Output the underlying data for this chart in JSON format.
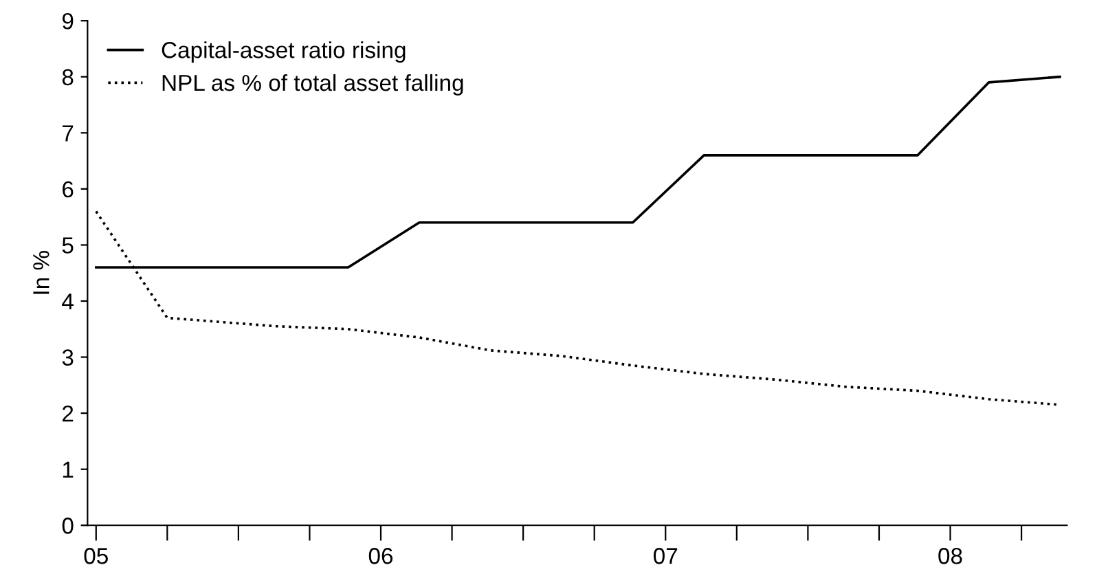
{
  "chart_data": {
    "type": "line",
    "ylabel": "In %",
    "xlim": [
      4.97,
      8.41
    ],
    "xticks": [
      {
        "value": 5,
        "label": "05"
      },
      {
        "value": 5.25,
        "label": null
      },
      {
        "value": 5.5,
        "label": null
      },
      {
        "value": 5.75,
        "label": null
      },
      {
        "value": 6,
        "label": "06"
      },
      {
        "value": 6.25,
        "label": null
      },
      {
        "value": 6.5,
        "label": null
      },
      {
        "value": 6.75,
        "label": null
      },
      {
        "value": 7,
        "label": "07"
      },
      {
        "value": 7.25,
        "label": null
      },
      {
        "value": 7.5,
        "label": null
      },
      {
        "value": 7.75,
        "label": null
      },
      {
        "value": 8,
        "label": "08"
      },
      {
        "value": 8.25,
        "label": null
      }
    ],
    "ylim": [
      0,
      9
    ],
    "yticks": [
      0,
      1,
      2,
      3,
      4,
      5,
      6,
      7,
      8,
      9
    ],
    "grid": false,
    "legend": "top left",
    "series": [
      {
        "name": "Capital-asset ratio rising",
        "color": "#000000",
        "line_style": "solid",
        "x": [
          5,
          5.885,
          6.135,
          6.885,
          7.135,
          7.885,
          8.135,
          8.385
        ],
        "values": [
          4.6,
          4.6,
          5.4,
          5.4,
          6.6,
          6.6,
          7.9,
          8.0
        ]
      },
      {
        "name": "NPL as % of total asset falling",
        "color": "#000000",
        "line_style": "dotted",
        "x": [
          5,
          5.25,
          5.635,
          5.885,
          6.135,
          6.385,
          6.635,
          6.885,
          7.135,
          7.385,
          7.635,
          7.885,
          8.135,
          8.385
        ],
        "values": [
          5.6,
          3.7,
          3.55,
          3.5,
          3.35,
          3.12,
          3.02,
          2.85,
          2.7,
          2.6,
          2.47,
          2.4,
          2.25,
          2.15
        ]
      }
    ]
  }
}
